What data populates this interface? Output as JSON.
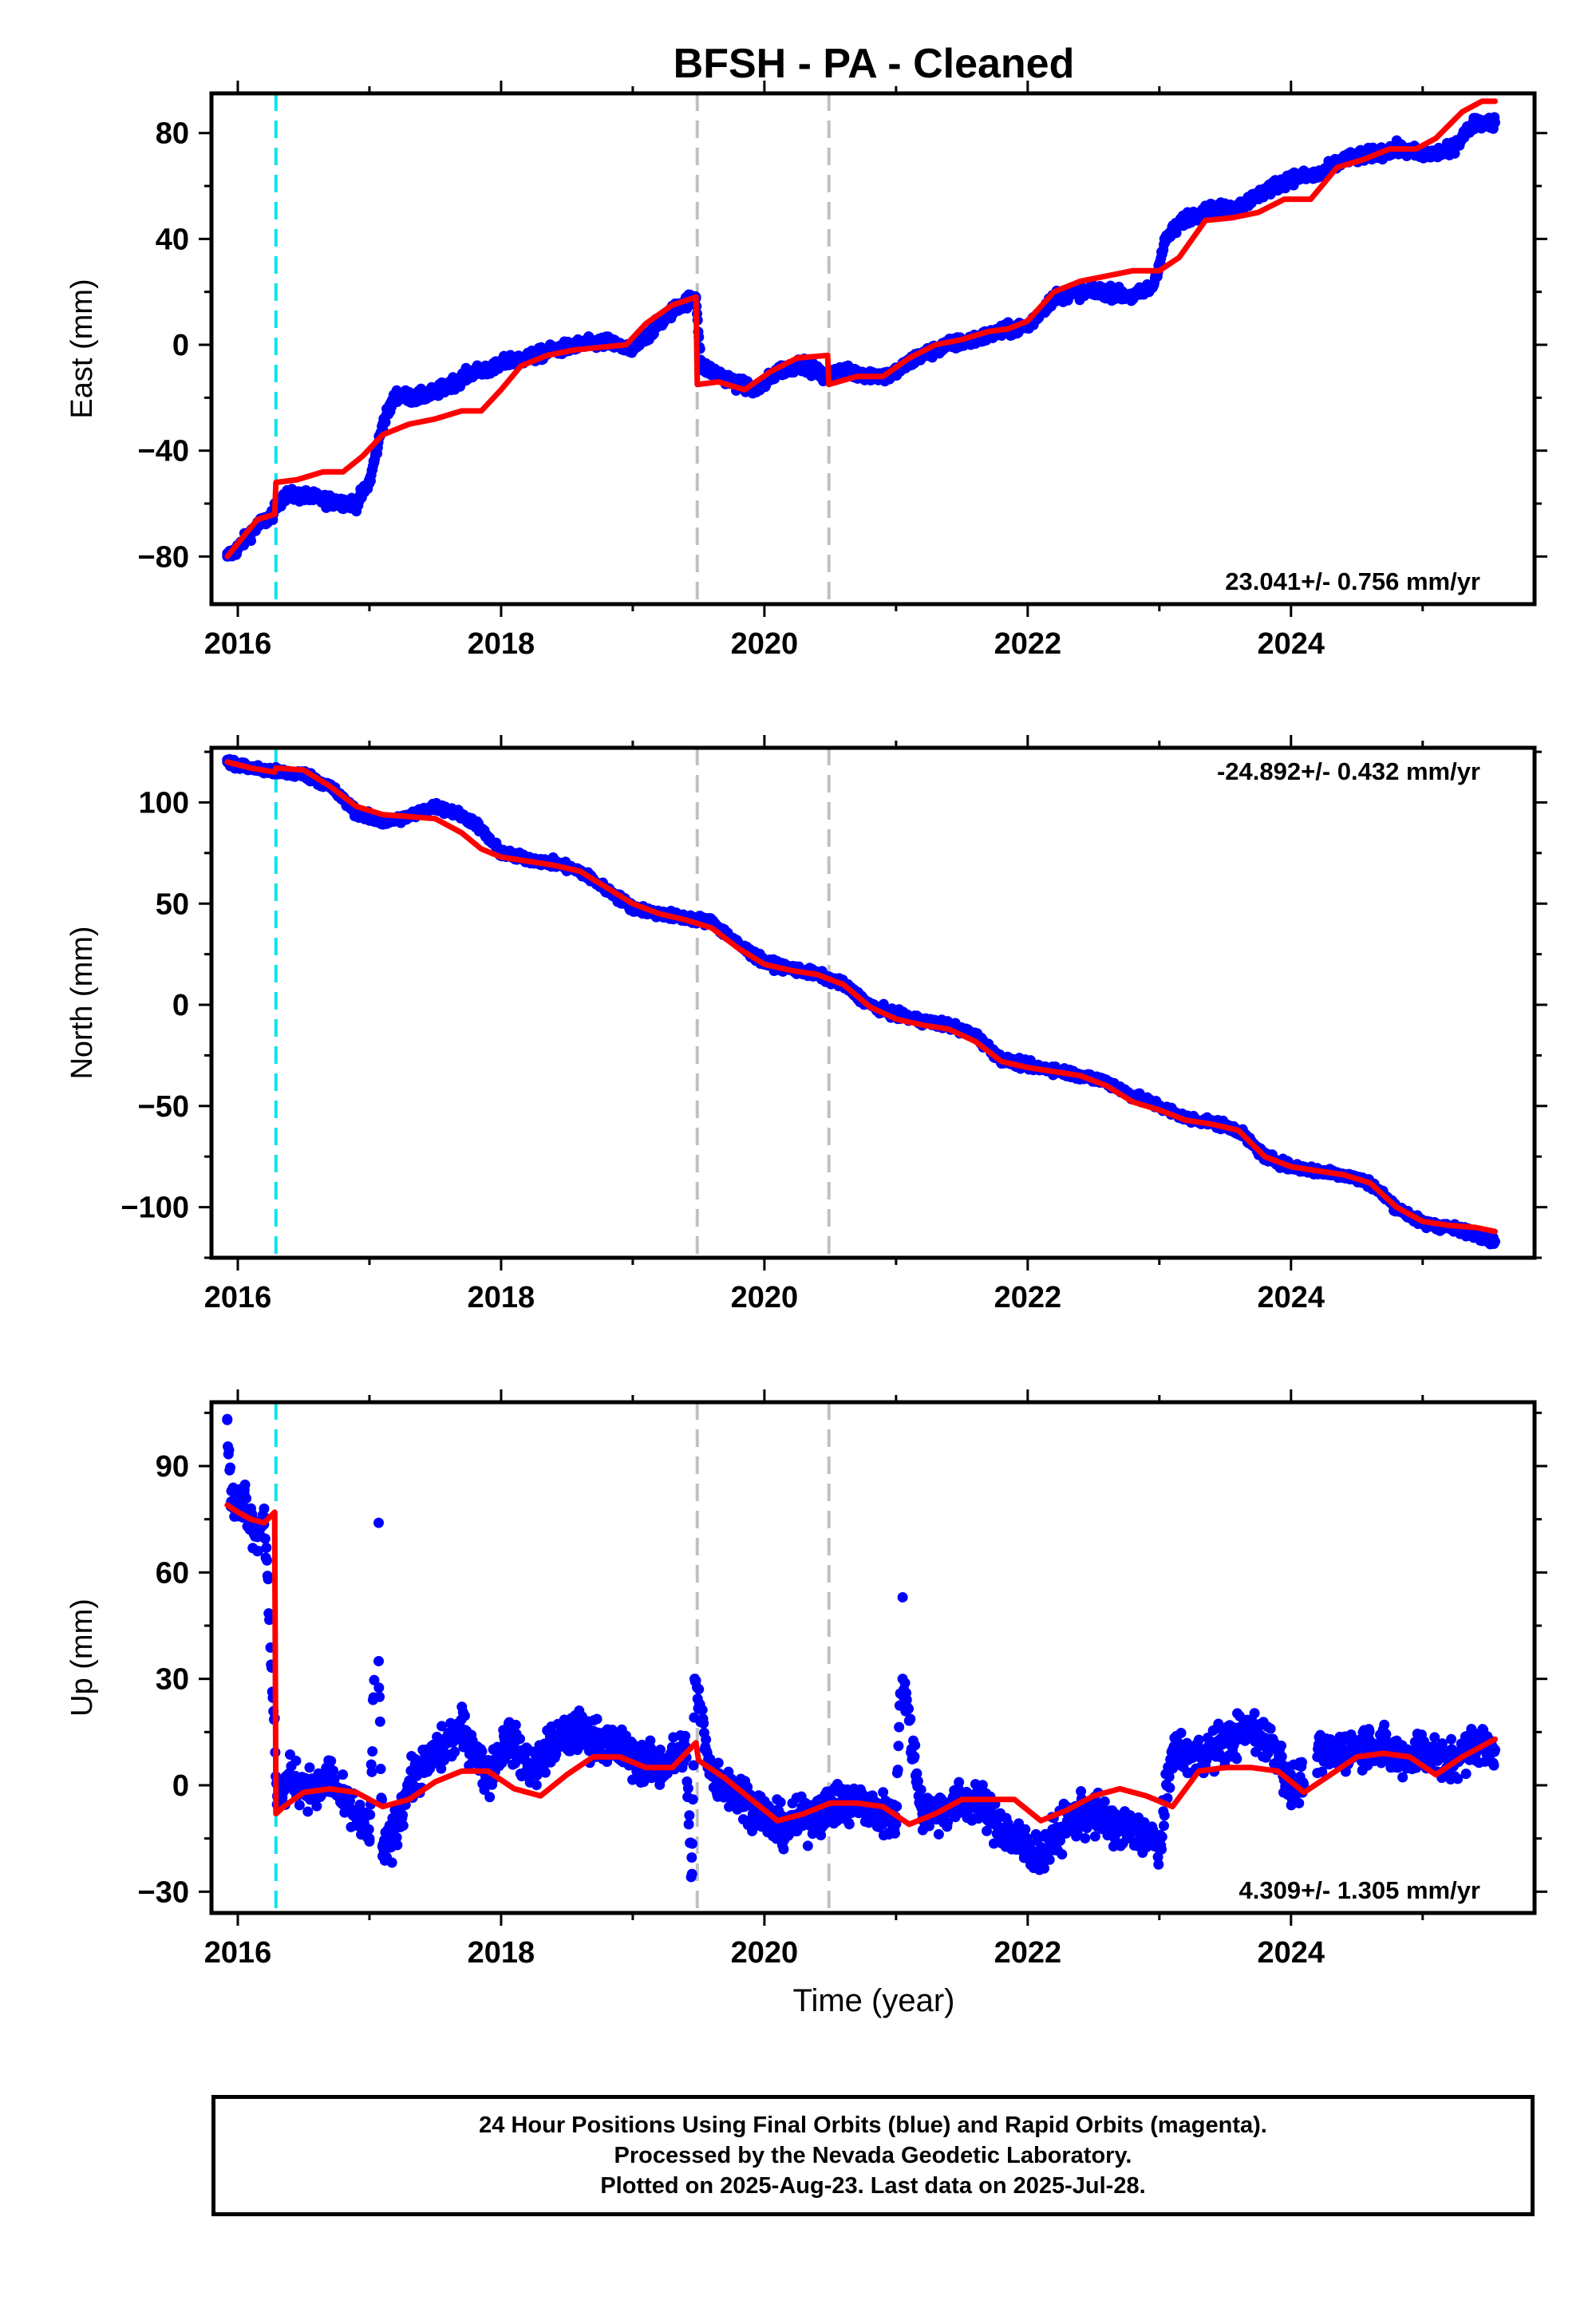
{
  "title": "BFSH  - PA - Cleaned",
  "xlabel": "Time (year)",
  "footer": {
    "line1": "24 Hour Positions Using Final Orbits (blue) and Rapid Orbits (magenta).",
    "line2": "Processed by the Nevada Geodetic Laboratory.",
    "line3": "Plotted on 2025-Aug-23. Last data on 2025-Jul-28."
  },
  "colors": {
    "final_orbit_points": "#0000ff",
    "model_fit": "#ff0000",
    "antenna_change_line": "#00e5ee",
    "equipment_change_line": "#c0c0c0"
  },
  "chart_data": [
    {
      "type": "scatter",
      "panel": "east",
      "ylabel": "East (mm)",
      "xlim": [
        2015.8,
        2025.85
      ],
      "ylim": [
        -98,
        95
      ],
      "xticks": [
        2016,
        2018,
        2020,
        2022,
        2024
      ],
      "yticks": [
        -80,
        -40,
        0,
        40,
        80
      ],
      "rate_label": "23.041+/- 0.756 mm/yr",
      "rate_label_position": "bottom-right",
      "series": [
        {
          "kind": "points",
          "x": [
            2015.92,
            2016.0,
            2016.08,
            2016.16,
            2016.25,
            2016.35,
            2016.5,
            2016.7,
            2016.9,
            2017.0,
            2017.1,
            2017.2,
            2017.35,
            2017.5,
            2017.65,
            2017.8,
            2017.95,
            2018.05,
            2018.2,
            2018.4,
            2018.6,
            2018.8,
            2019.0,
            2019.2,
            2019.35,
            2019.48,
            2019.52,
            2019.65,
            2019.8,
            2019.95,
            2020.1,
            2020.3,
            2020.45,
            2020.55,
            2020.75,
            2020.95,
            2021.15,
            2021.4,
            2021.6,
            2021.8,
            2022.0,
            2022.2,
            2022.4,
            2022.6,
            2022.8,
            2022.95,
            2023.05,
            2023.2,
            2023.4,
            2023.6,
            2023.8,
            2024.0,
            2024.2,
            2024.4,
            2024.6,
            2024.8,
            2025.0,
            2025.2,
            2025.4,
            2025.55
          ],
          "y": [
            -80,
            -77,
            -72,
            -68,
            -65,
            -57,
            -57,
            -59,
            -60,
            -52,
            -30,
            -19,
            -20,
            -18,
            -14,
            -10,
            -9,
            -6,
            -5,
            -2,
            0,
            1,
            -2,
            8,
            15,
            18,
            -8,
            -11,
            -15,
            -17,
            -10,
            -7,
            -12,
            -10,
            -11,
            -12,
            -5,
            0,
            2,
            5,
            7,
            18,
            20,
            20,
            18,
            22,
            40,
            48,
            51,
            52,
            58,
            63,
            64,
            70,
            72,
            74,
            72,
            73,
            84,
            84
          ]
        },
        {
          "kind": "model",
          "x": [
            2015.92,
            2016.05,
            2016.15,
            2016.28,
            2016.29,
            2016.45,
            2016.65,
            2016.8,
            2016.95,
            2017.1,
            2017.3,
            2017.5,
            2017.7,
            2017.85,
            2018.0,
            2018.15,
            2018.35,
            2018.55,
            2018.75,
            2018.95,
            2019.1,
            2019.3,
            2019.48,
            2019.49,
            2019.65,
            2019.85,
            2020.05,
            2020.25,
            2020.48,
            2020.49,
            2020.7,
            2020.9,
            2021.1,
            2021.3,
            2021.5,
            2021.7,
            2021.85,
            2022.0,
            2022.2,
            2022.4,
            2022.6,
            2022.8,
            2023.0,
            2023.15,
            2023.35,
            2023.55,
            2023.75,
            2023.95,
            2024.15,
            2024.35,
            2024.55,
            2024.75,
            2024.95,
            2025.1,
            2025.3,
            2025.45,
            2025.55
          ],
          "y": [
            -80,
            -72,
            -66,
            -64,
            -52,
            -51,
            -48,
            -48,
            -42,
            -34,
            -30,
            -28,
            -25,
            -25,
            -17,
            -8,
            -4,
            -2,
            -1,
            0,
            8,
            15,
            18,
            -15,
            -14,
            -17,
            -10,
            -5,
            -4,
            -15,
            -12,
            -12,
            -5,
            0,
            2,
            5,
            6,
            9,
            20,
            24,
            26,
            28,
            28,
            33,
            47,
            48,
            50,
            55,
            55,
            67,
            70,
            74,
            74,
            78,
            88,
            92,
            92
          ]
        }
      ]
    },
    {
      "type": "scatter",
      "panel": "north",
      "ylabel": "North (mm)",
      "xlim": [
        2015.8,
        2025.85
      ],
      "ylim": [
        -125,
        127
      ],
      "xticks": [
        2016,
        2018,
        2020,
        2022,
        2024
      ],
      "yticks": [
        -100,
        -50,
        0,
        50,
        100
      ],
      "rate_label": "-24.892+/- 0.432 mm/yr",
      "rate_label_position": "top-right",
      "series": [
        {
          "kind": "points",
          "x": [
            2015.92,
            2016.1,
            2016.3,
            2016.5,
            2016.7,
            2016.9,
            2017.1,
            2017.3,
            2017.5,
            2017.65,
            2017.8,
            2018.0,
            2018.2,
            2018.4,
            2018.6,
            2018.8,
            2019.0,
            2019.2,
            2019.4,
            2019.6,
            2019.8,
            2020.0,
            2020.2,
            2020.4,
            2020.6,
            2020.8,
            2021.0,
            2021.2,
            2021.4,
            2021.6,
            2021.8,
            2022.0,
            2022.2,
            2022.4,
            2022.6,
            2022.8,
            2023.0,
            2023.2,
            2023.4,
            2023.6,
            2023.8,
            2024.0,
            2024.2,
            2024.4,
            2024.6,
            2024.8,
            2025.0,
            2025.2,
            2025.4,
            2025.55
          ],
          "y": [
            120,
            117,
            115,
            114,
            108,
            95,
            90,
            93,
            98,
            95,
            90,
            75,
            72,
            70,
            66,
            57,
            48,
            45,
            43,
            41,
            30,
            21,
            18,
            15,
            10,
            0,
            -5,
            -8,
            -10,
            -15,
            -27,
            -30,
            -32,
            -35,
            -38,
            -45,
            -50,
            -56,
            -58,
            -62,
            -75,
            -80,
            -82,
            -84,
            -88,
            -100,
            -108,
            -110,
            -113,
            -117
          ]
        },
        {
          "kind": "model",
          "x": [
            2015.92,
            2016.1,
            2016.28,
            2016.29,
            2016.5,
            2016.7,
            2016.9,
            2017.1,
            2017.3,
            2017.5,
            2017.7,
            2017.85,
            2018.0,
            2018.2,
            2018.4,
            2018.6,
            2018.8,
            2019.0,
            2019.2,
            2019.4,
            2019.6,
            2019.8,
            2020.0,
            2020.2,
            2020.4,
            2020.6,
            2020.8,
            2021.0,
            2021.2,
            2021.4,
            2021.6,
            2021.8,
            2022.0,
            2022.2,
            2022.4,
            2022.6,
            2022.8,
            2023.0,
            2023.2,
            2023.4,
            2023.6,
            2023.8,
            2024.0,
            2024.2,
            2024.4,
            2024.6,
            2024.8,
            2025.0,
            2025.2,
            2025.4,
            2025.55
          ],
          "y": [
            120,
            117,
            115,
            117,
            116,
            108,
            98,
            94,
            93,
            92,
            85,
            77,
            73,
            71,
            69,
            66,
            58,
            50,
            45,
            42,
            38,
            28,
            20,
            17,
            15,
            10,
            -1,
            -7,
            -10,
            -12,
            -18,
            -28,
            -31,
            -33,
            -35,
            -40,
            -48,
            -52,
            -57,
            -59,
            -62,
            -75,
            -80,
            -82,
            -84,
            -88,
            -100,
            -107,
            -109,
            -110,
            -112
          ]
        }
      ]
    },
    {
      "type": "scatter",
      "panel": "up",
      "ylabel": "Up (mm)",
      "xlim": [
        2015.8,
        2025.85
      ],
      "ylim": [
        -36,
        108
      ],
      "xticks": [
        2016,
        2018,
        2020,
        2022,
        2024
      ],
      "yticks": [
        -30,
        0,
        30,
        60,
        90
      ],
      "rate_label": "4.309+/- 1.305 mm/yr",
      "rate_label_position": "bottom-right",
      "series": [
        {
          "kind": "points",
          "x": [
            2015.92,
            2015.95,
            2016.0,
            2016.05,
            2016.1,
            2016.15,
            2016.2,
            2016.3,
            2016.4,
            2016.5,
            2016.6,
            2016.7,
            2016.8,
            2016.9,
            2017.0,
            2017.07,
            2017.07,
            2017.1,
            2017.2,
            2017.3,
            2017.4,
            2017.5,
            2017.6,
            2017.7,
            2017.8,
            2017.9,
            2018.05,
            2018.15,
            2018.25,
            2018.4,
            2018.6,
            2018.8,
            2019.0,
            2019.2,
            2019.4,
            2019.45,
            2019.47,
            2019.6,
            2019.8,
            2020.0,
            2020.1,
            2020.3,
            2020.5,
            2020.7,
            2020.9,
            2021.0,
            2021.05,
            2021.05,
            2021.2,
            2021.4,
            2021.6,
            2021.8,
            2022.0,
            2022.1,
            2022.3,
            2022.5,
            2022.7,
            2022.9,
            2023.0,
            2023.1,
            2023.3,
            2023.5,
            2023.7,
            2023.9,
            2024.0,
            2024.2,
            2024.4,
            2024.6,
            2024.8,
            2025.0,
            2025.2,
            2025.4,
            2025.55
          ],
          "y": [
            103,
            80,
            78,
            82,
            75,
            70,
            78,
            -3,
            2,
            0,
            -2,
            3,
            -5,
            -8,
            -15,
            74,
            35,
            -20,
            -12,
            0,
            5,
            8,
            12,
            16,
            10,
            2,
            14,
            8,
            5,
            12,
            15,
            12,
            8,
            5,
            10,
            -25,
            30,
            3,
            -2,
            -8,
            -12,
            -10,
            -6,
            -5,
            -8,
            -10,
            53,
            30,
            -8,
            -6,
            -4,
            -12,
            -18,
            -20,
            -10,
            -8,
            -12,
            -14,
            -18,
            10,
            8,
            12,
            16,
            10,
            -2,
            8,
            10,
            12,
            8,
            10,
            6,
            12,
            10
          ]
        },
        {
          "kind": "model",
          "x": [
            2015.92,
            2016.0,
            2016.1,
            2016.2,
            2016.28,
            2016.29,
            2016.35,
            2016.5,
            2016.7,
            2016.9,
            2017.1,
            2017.3,
            2017.5,
            2017.7,
            2017.9,
            2018.1,
            2018.3,
            2018.5,
            2018.7,
            2018.9,
            2019.1,
            2019.3,
            2019.48,
            2019.5,
            2019.7,
            2019.9,
            2020.1,
            2020.3,
            2020.5,
            2020.7,
            2020.9,
            2021.1,
            2021.3,
            2021.5,
            2021.7,
            2021.9,
            2022.1,
            2022.3,
            2022.5,
            2022.7,
            2022.9,
            2023.1,
            2023.3,
            2023.5,
            2023.7,
            2023.9,
            2024.1,
            2024.3,
            2024.5,
            2024.7,
            2024.9,
            2025.1,
            2025.3,
            2025.55
          ],
          "y": [
            79,
            77,
            75,
            74,
            77,
            -8,
            -6,
            -2,
            -1,
            -2,
            -6,
            -4,
            1,
            4,
            4,
            -1,
            -3,
            3,
            8,
            8,
            5,
            5,
            12,
            7,
            2,
            -4,
            -10,
            -8,
            -5,
            -5,
            -6,
            -11,
            -8,
            -4,
            -4,
            -4,
            -10,
            -7,
            -3,
            -1,
            -3,
            -6,
            4,
            5,
            5,
            4,
            -2,
            3,
            8,
            9,
            8,
            3,
            8,
            13
          ]
        }
      ]
    }
  ]
}
